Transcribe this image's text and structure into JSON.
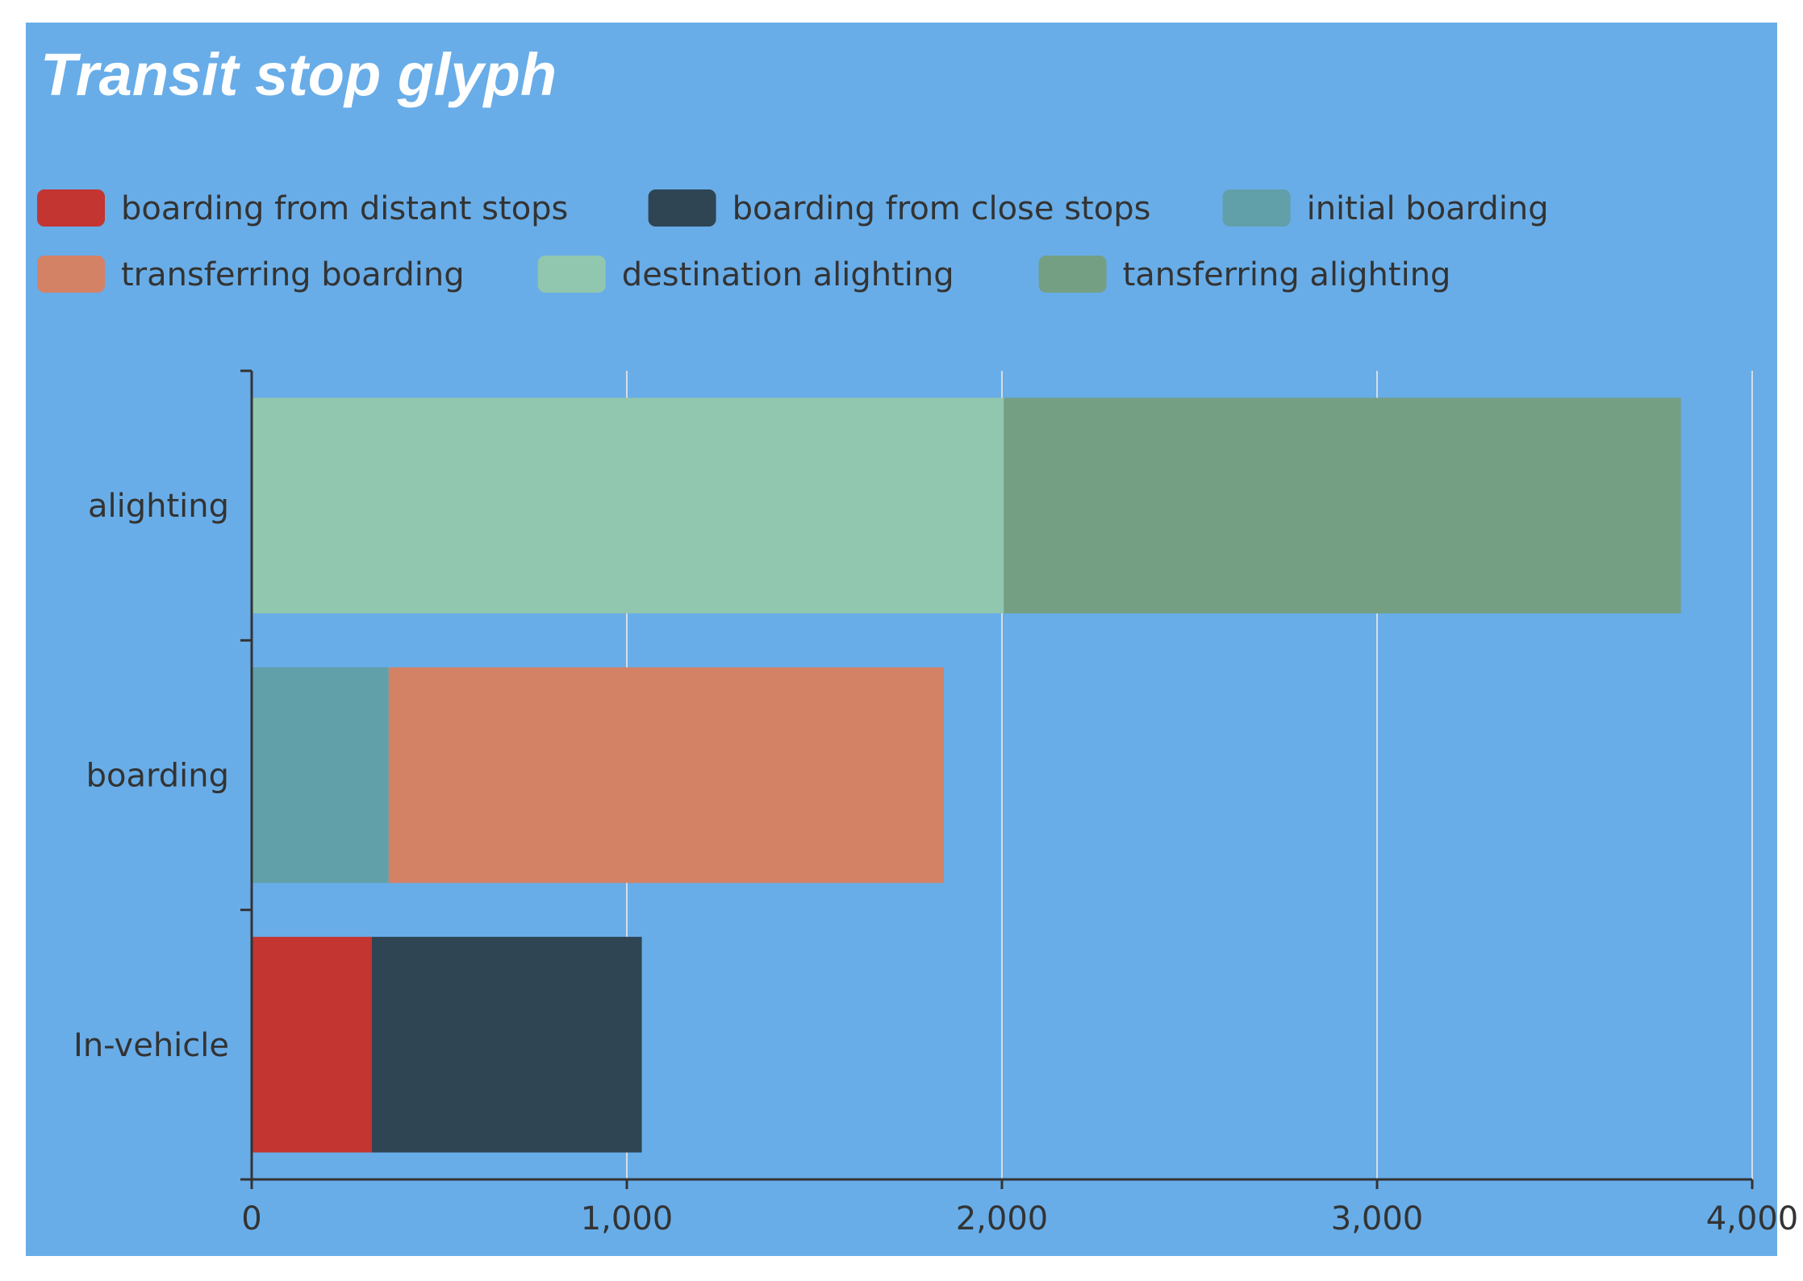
{
  "chart_data": {
    "type": "bar",
    "orientation": "horizontal",
    "stacked": true,
    "title": "Transit stop glyph",
    "xlabel": "",
    "ylabel": "",
    "categories": [
      "alighting",
      "boarding",
      "In-vehicle"
    ],
    "xlim": [
      0,
      4000
    ],
    "x_ticks": [
      "0",
      "1,000",
      "2,000",
      "3,000",
      "4,000"
    ],
    "grid": true,
    "legend_placement": "top-left",
    "series": [
      {
        "name": "boarding from distant stops",
        "color": "#c23531",
        "values": [
          0,
          0,
          320
        ]
      },
      {
        "name": "boarding from close stops",
        "color": "#2f4554",
        "values": [
          0,
          0,
          720
        ]
      },
      {
        "name": "initial boarding",
        "color": "#61a0a8",
        "values": [
          0,
          365,
          0
        ]
      },
      {
        "name": "transferring boarding",
        "color": "#d48265",
        "values": [
          0,
          1480,
          0
        ]
      },
      {
        "name": "destination alighting",
        "color": "#91c7ae",
        "values": [
          2005,
          0,
          0
        ]
      },
      {
        "name": "tansferring alighting",
        "color": "#749f83",
        "values": [
          1805,
          0,
          0
        ]
      }
    ]
  },
  "colors": {
    "background": "#68ade8",
    "title": "#ffffff",
    "text": "#333333",
    "axis": "#333333",
    "grid": "#d6dde6"
  }
}
